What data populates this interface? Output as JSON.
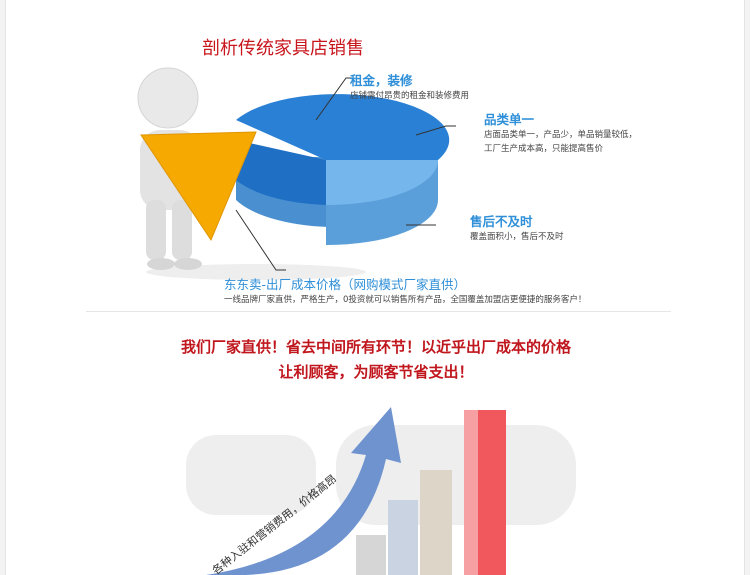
{
  "section1": {
    "title": "剖析传统家具店销售",
    "callouts": [
      {
        "heading": "租金，装修",
        "desc": [
          "店铺需付昂贵的租金和装修费用"
        ]
      },
      {
        "heading": "品类单一",
        "desc": [
          "店面品类单一，产品少，单品销量较低，",
          "工厂生产成本高，只能提高售价"
        ]
      },
      {
        "heading": "售后不及时",
        "desc": [
          "覆盖面积小，售后不及时"
        ]
      },
      {
        "heading": "东东卖-出厂成本价格（网购模式厂家直供）",
        "desc": [
          "一线品牌厂家直供，严格生产，0投资就可以销售所有产品，全国覆盖加盟店更便捷的服务客户！"
        ]
      }
    ],
    "colors": {
      "pie_dark": "#1f78d1",
      "pie_light": "#6bb3ea",
      "slice": "#f6a900"
    }
  },
  "section2": {
    "slogan_line1": "我们厂家直供！省去中间所有环节！以近乎出厂成本的价格",
    "slogan_line2": "让利顾客，为顾客节省支出！",
    "arrow_text": "各种入驻和营销费用，价格高昂",
    "colors": {
      "arrow": "#6f93cf",
      "bar_highlight": "#f0585e",
      "bar_grey": "#d9d9d9"
    }
  }
}
